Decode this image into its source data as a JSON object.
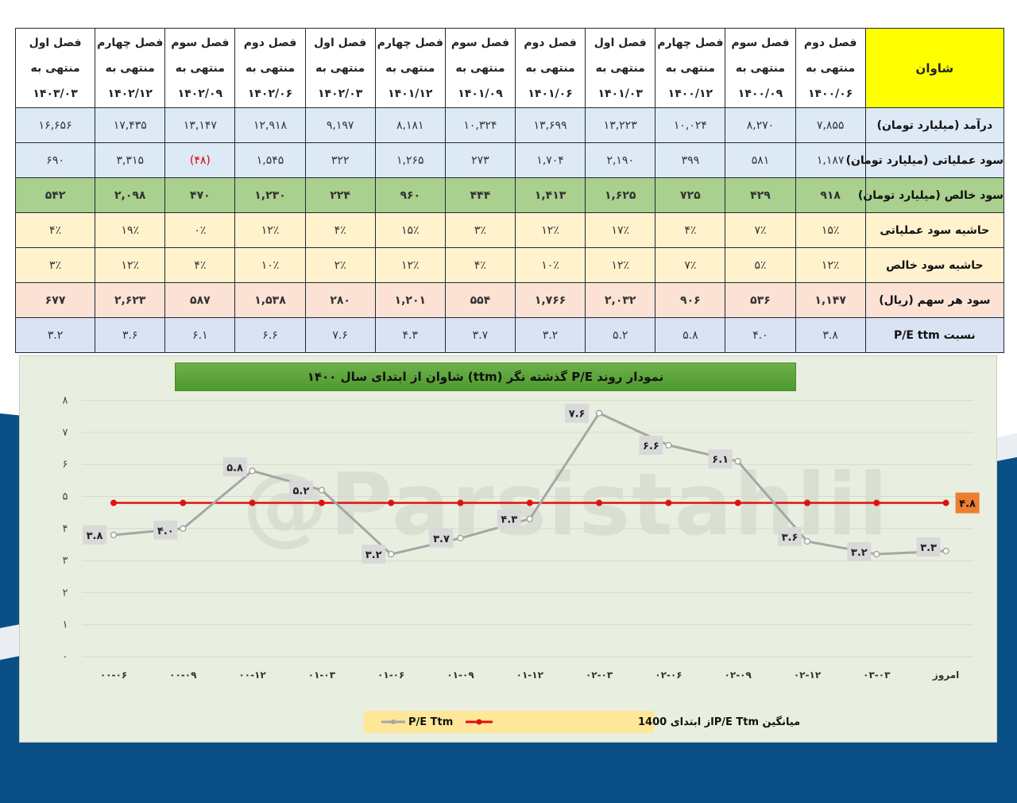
{
  "table": {
    "company_label": "شاوان",
    "periods": [
      {
        "quarter": "فصل دوم",
        "ending_label": "منتهی به",
        "date": "۱۴۰۰/۰۶"
      },
      {
        "quarter": "فصل سوم",
        "ending_label": "منتهی به",
        "date": "۱۴۰۰/۰۹"
      },
      {
        "quarter": "فصل چهارم",
        "ending_label": "منتهی به",
        "date": "۱۴۰۰/۱۲"
      },
      {
        "quarter": "فصل اول",
        "ending_label": "منتهی به",
        "date": "۱۴۰۱/۰۳"
      },
      {
        "quarter": "فصل دوم",
        "ending_label": "منتهی به",
        "date": "۱۴۰۱/۰۶"
      },
      {
        "quarter": "فصل سوم",
        "ending_label": "منتهی به",
        "date": "۱۴۰۱/۰۹"
      },
      {
        "quarter": "فصل چهارم",
        "ending_label": "منتهی به",
        "date": "۱۴۰۱/۱۲"
      },
      {
        "quarter": "فصل اول",
        "ending_label": "منتهی به",
        "date": "۱۴۰۲/۰۳"
      },
      {
        "quarter": "فصل دوم",
        "ending_label": "منتهی به",
        "date": "۱۴۰۲/۰۶"
      },
      {
        "quarter": "فصل سوم",
        "ending_label": "منتهی به",
        "date": "۱۴۰۲/۰۹"
      },
      {
        "quarter": "فصل چهارم",
        "ending_label": "منتهی به",
        "date": "۱۴۰۲/۱۲"
      },
      {
        "quarter": "فصل اول",
        "ending_label": "منتهی به",
        "date": "۱۴۰۳/۰۳"
      }
    ],
    "rows": [
      {
        "key": "revenue",
        "label": "درآمد (میلیارد تومان)",
        "values": [
          "۷,۸۵۵",
          "۸,۲۷۰",
          "۱۰,۰۲۴",
          "۱۳,۲۲۳",
          "۱۳,۶۹۹",
          "۱۰,۳۲۴",
          "۸,۱۸۱",
          "۹,۱۹۷",
          "۱۲,۹۱۸",
          "۱۳,۱۴۷",
          "۱۷,۴۳۵",
          "۱۶,۶۵۶"
        ]
      },
      {
        "key": "oper",
        "label": "سود عملیاتی (میلیارد تومان)",
        "values": [
          "۱,۱۸۷",
          "۵۸۱",
          "۳۹۹",
          "۲,۱۹۰",
          "۱,۷۰۴",
          "۲۷۳",
          "۱,۲۶۵",
          "۳۲۲",
          "۱,۵۴۵",
          "(۴۸)",
          "۳,۳۱۵",
          "۶۹۰"
        ],
        "negative_index": 9
      },
      {
        "key": "net",
        "label": "سود خالص (میلیارد تومان)",
        "values": [
          "۹۱۸",
          "۴۲۹",
          "۷۲۵",
          "۱,۶۲۵",
          "۱,۴۱۳",
          "۴۴۴",
          "۹۶۰",
          "۲۲۴",
          "۱,۲۳۰",
          "۴۷۰",
          "۲,۰۹۸",
          "۵۴۲"
        ]
      },
      {
        "key": "opmargin",
        "label": "حاشیه سود عملیاتی",
        "values": [
          "۱۵٪",
          "۷٪",
          "۴٪",
          "۱۷٪",
          "۱۲٪",
          "۳٪",
          "۱۵٪",
          "۴٪",
          "۱۲٪",
          "۰٪",
          "۱۹٪",
          "۴٪"
        ]
      },
      {
        "key": "netmargin",
        "label": "حاشیه سود خالص",
        "values": [
          "۱۲٪",
          "۵٪",
          "۷٪",
          "۱۲٪",
          "۱۰٪",
          "۴٪",
          "۱۲٪",
          "۲٪",
          "۱۰٪",
          "۴٪",
          "۱۲٪",
          "۳٪"
        ]
      },
      {
        "key": "eps",
        "label": "سود هر سهم (ریال)",
        "values": [
          "۱,۱۴۷",
          "۵۳۶",
          "۹۰۶",
          "۲,۰۳۲",
          "۱,۷۶۶",
          "۵۵۴",
          "۱,۲۰۱",
          "۲۸۰",
          "۱,۵۳۸",
          "۵۸۷",
          "۲,۶۲۳",
          "۶۷۷"
        ]
      },
      {
        "key": "pe",
        "label": "نسبت P/E ttm",
        "values": [
          "۳.۸",
          "۴.۰",
          "۵.۸",
          "۵.۲",
          "۳.۲",
          "۳.۷",
          "۴.۳",
          "۷.۶",
          "۶.۶",
          "۶.۱",
          "۳.۶",
          "۳.۲"
        ]
      }
    ]
  },
  "chart_data": {
    "type": "line",
    "title": "نمودار روند P/E گذشته نگر (ttm)  شاوان از ابتدای سال ۱۴۰۰",
    "categories": [
      "۰۰-۰۶",
      "۰۰-۰۹",
      "۰۰-۱۲",
      "۰۱-۰۳",
      "۰۱-۰۶",
      "۰۱-۰۹",
      "۰۱-۱۲",
      "۰۲-۰۳",
      "۰۲-۰۶",
      "۰۲-۰۹",
      "۰۲-۱۲",
      "۰۳-۰۳",
      "امروز"
    ],
    "ylim": [
      0,
      8
    ],
    "yticks": [
      "۰",
      "۱",
      "۲",
      "۳",
      "۴",
      "۵",
      "۶",
      "۷",
      "۸"
    ],
    "grid": true,
    "legend_position": "bottom",
    "series": [
      {
        "name": "P/E Ttm",
        "values": [
          3.8,
          4.0,
          5.8,
          5.2,
          3.2,
          3.7,
          4.3,
          7.6,
          6.6,
          6.1,
          3.6,
          3.2,
          3.3
        ],
        "labels": [
          "۳.۸",
          "۴.۰",
          "۵.۸",
          "۵.۲",
          "۳.۲",
          "۳.۷",
          "۴.۳",
          "۷.۶",
          "۶.۶",
          "۶.۱",
          "۳.۶",
          "۳.۲",
          "۳.۳"
        ],
        "color": "#a6a6a6"
      },
      {
        "name": "میانگین P/E Ttmاز ابتدای 1400",
        "values": [
          4.8,
          4.8,
          4.8,
          4.8,
          4.8,
          4.8,
          4.8,
          4.8,
          4.8,
          4.8,
          4.8,
          4.8,
          4.8
        ],
        "end_label": "۴.۸",
        "color": "#e01010"
      }
    ],
    "watermark": "@Parsistahlil"
  },
  "colors": {
    "header_label_bg": "#ffff00",
    "net_row_bg": "#a9d08e",
    "margin_row_bg": "#fff2cc",
    "eps_row_bg": "#fbe2d5",
    "chart_bg": "#e8efe0",
    "title_bg": "#5aa53a",
    "avg_label_bg": "#ed7d31",
    "page_bg_blue": "#0a4f86"
  }
}
